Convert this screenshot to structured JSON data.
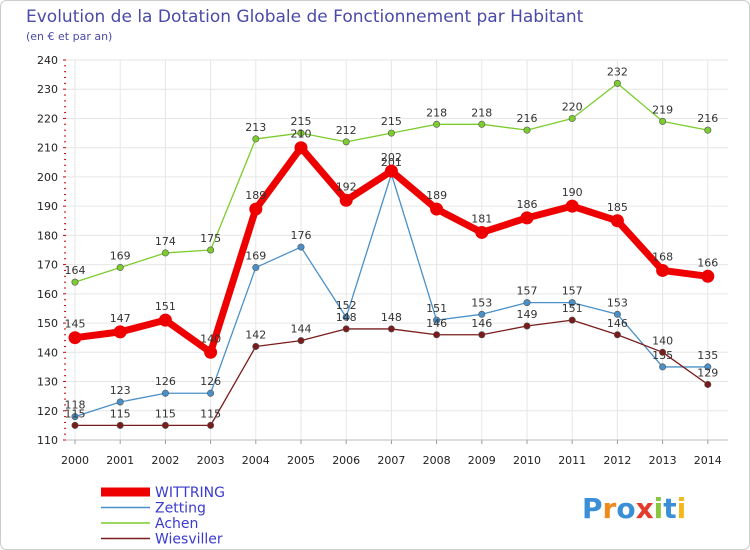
{
  "chart_data": {
    "type": "line",
    "title": "Evolution de la Dotation Globale de Fonctionnement par Habitant",
    "subtitle": "(en € et par an)",
    "xlabel": "",
    "ylabel": "",
    "ylim": [
      110,
      240
    ],
    "y_ticks": [
      110,
      120,
      130,
      140,
      150,
      160,
      170,
      180,
      190,
      200,
      210,
      220,
      230,
      240
    ],
    "grid": true,
    "legend_position": "bottom-left",
    "categories": [
      "2000",
      "2001",
      "2002",
      "2003",
      "2004",
      "2005",
      "2006",
      "2007",
      "2008",
      "2009",
      "2010",
      "2011",
      "2012",
      "2013",
      "2014"
    ],
    "series": [
      {
        "name": "Achen",
        "color": "#7ccc2e",
        "values": [
          164,
          169,
          174,
          175,
          213,
          215,
          212,
          215,
          218,
          218,
          216,
          220,
          232,
          219,
          216
        ]
      },
      {
        "name": "Zetting",
        "color": "#4a90c8",
        "values": [
          118,
          123,
          126,
          126,
          169,
          176,
          152,
          201,
          151,
          153,
          157,
          157,
          153,
          135,
          135
        ]
      },
      {
        "name": "Wiesviller",
        "color": "#7a1c1c",
        "values": [
          115,
          115,
          115,
          115,
          142,
          144,
          148,
          148,
          146,
          146,
          149,
          151,
          146,
          140,
          129
        ]
      },
      {
        "name": "WITTRING",
        "color": "#ee0000",
        "values": [
          145,
          147,
          151,
          140,
          189,
          210,
          192,
          202,
          189,
          181,
          186,
          190,
          185,
          168,
          166
        ]
      }
    ],
    "legend": [
      "WITTRING",
      "Zetting",
      "Achen",
      "Wiesviller"
    ]
  },
  "brand": {
    "logo_text": "Proxiti",
    "letter_colors": [
      "#3a8fd6",
      "#f08a1c",
      "#3a8fd6",
      "#e33c2b",
      "#8bc53f",
      "#3a8fd6",
      "#f5b81c"
    ]
  },
  "colors": {
    "grid": "#e6e6e6",
    "frame": "#cccccc",
    "axis_ticks": "#cc0000"
  }
}
